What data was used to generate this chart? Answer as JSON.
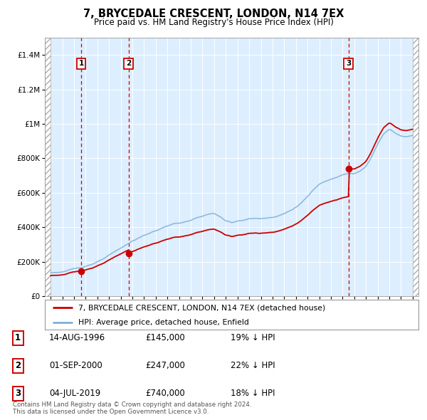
{
  "title": "7, BRYCEDALE CRESCENT, LONDON, N14 7EX",
  "subtitle": "Price paid vs. HM Land Registry's House Price Index (HPI)",
  "ylim": [
    0,
    1500000
  ],
  "yticks": [
    0,
    200000,
    400000,
    600000,
    800000,
    1000000,
    1200000,
    1400000
  ],
  "ytick_labels": [
    "£0",
    "£200K",
    "£400K",
    "£600K",
    "£800K",
    "£1M",
    "£1.2M",
    "£1.4M"
  ],
  "xlim_start": 1993.5,
  "xlim_end": 2025.5,
  "background_color": "#ffffff",
  "plot_bg_color": "#ddeeff",
  "hatch_color": "#aaaaaa",
  "grid_color": "#ffffff",
  "sale_dates": [
    1996.617,
    2000.668,
    2019.504
  ],
  "sale_prices": [
    145000,
    247000,
    740000
  ],
  "sale_labels": [
    "1",
    "2",
    "3"
  ],
  "hpi_line_color": "#7fb0d8",
  "price_line_color": "#cc0000",
  "dashed_line_color": "#cc0000",
  "legend_house": "7, BRYCEDALE CRESCENT, LONDON, N14 7EX (detached house)",
  "legend_hpi": "HPI: Average price, detached house, Enfield",
  "table_data": [
    [
      "1",
      "14-AUG-1996",
      "£145,000",
      "19% ↓ HPI"
    ],
    [
      "2",
      "01-SEP-2000",
      "£247,000",
      "22% ↓ HPI"
    ],
    [
      "3",
      "04-JUL-2019",
      "£740,000",
      "18% ↓ HPI"
    ]
  ],
  "footnote": "Contains HM Land Registry data © Crown copyright and database right 2024.\nThis data is licensed under the Open Government Licence v3.0.",
  "hpi_key_years": [
    1994.0,
    1994.5,
    1995.0,
    1995.5,
    1996.0,
    1996.5,
    1997.0,
    1997.5,
    1998.0,
    1998.5,
    1999.0,
    1999.5,
    2000.0,
    2000.5,
    2001.0,
    2001.5,
    2002.0,
    2002.5,
    2003.0,
    2003.5,
    2004.0,
    2004.5,
    2005.0,
    2005.5,
    2006.0,
    2006.5,
    2007.0,
    2007.5,
    2008.0,
    2008.5,
    2009.0,
    2009.5,
    2010.0,
    2010.5,
    2011.0,
    2011.5,
    2012.0,
    2012.5,
    2013.0,
    2013.5,
    2014.0,
    2014.5,
    2015.0,
    2015.5,
    2016.0,
    2016.5,
    2017.0,
    2017.5,
    2018.0,
    2018.5,
    2019.0,
    2019.5,
    2020.0,
    2020.5,
    2021.0,
    2021.5,
    2022.0,
    2022.5,
    2023.0,
    2023.5,
    2024.0,
    2024.5,
    2025.0
  ],
  "hpi_key_vals": [
    135000,
    138000,
    142000,
    148000,
    155000,
    163000,
    175000,
    188000,
    200000,
    215000,
    232000,
    252000,
    272000,
    295000,
    315000,
    332000,
    348000,
    362000,
    375000,
    390000,
    405000,
    415000,
    420000,
    425000,
    432000,
    445000,
    458000,
    468000,
    472000,
    455000,
    428000,
    420000,
    430000,
    438000,
    445000,
    448000,
    445000,
    450000,
    458000,
    468000,
    480000,
    498000,
    518000,
    545000,
    578000,
    615000,
    650000,
    672000,
    688000,
    700000,
    712000,
    720000,
    715000,
    730000,
    760000,
    820000,
    890000,
    950000,
    980000,
    960000,
    945000,
    940000,
    950000
  ]
}
